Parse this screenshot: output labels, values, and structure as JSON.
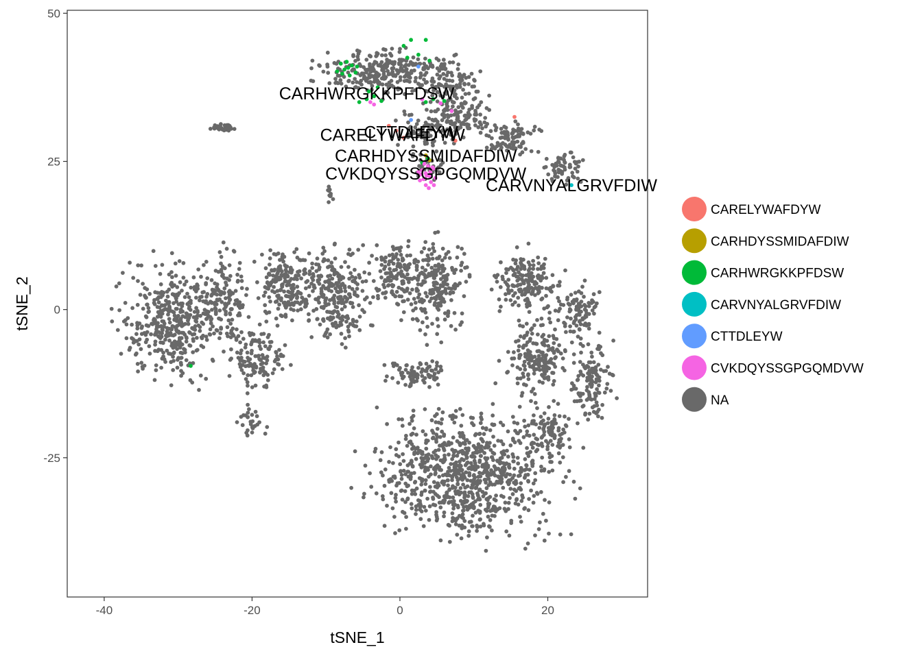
{
  "chart_data": {
    "type": "scatter",
    "xlabel": "tSNE_1",
    "ylabel": "tSNE_2",
    "xlim": [
      -45,
      33.5
    ],
    "ylim": [
      -48.5,
      50.5
    ],
    "x_ticks": [
      -40,
      -20,
      0,
      20
    ],
    "y_ticks": [
      -25,
      0,
      25,
      50
    ],
    "grid": false,
    "legend_position": "right",
    "series": [
      {
        "name": "CARELYWAFDYW",
        "color": "#F8766D",
        "points": [
          [
            -1.5,
            31.0
          ],
          [
            0.5,
            29.0
          ],
          [
            7.5,
            28.5
          ],
          [
            15.5,
            32.5
          ],
          [
            -0.5,
            30.2
          ]
        ]
      },
      {
        "name": "CARHDYSSMIDAFDIW",
        "color": "#B79F00",
        "points": [
          [
            3.5,
            26.0
          ],
          [
            4.0,
            25.2
          ]
        ]
      },
      {
        "name": "CARHWRGKKPFDSW",
        "color": "#00BA38",
        "points": [
          [
            -8.0,
            41.5
          ],
          [
            -7.5,
            40.5
          ],
          [
            -7.0,
            40.8
          ],
          [
            -6.5,
            41.2
          ],
          [
            -7.8,
            39.8
          ],
          [
            -6.8,
            39.5
          ],
          [
            -8.5,
            40.2
          ],
          [
            -6.0,
            40.0
          ],
          [
            -7.2,
            41.8
          ],
          [
            -5.5,
            35.0
          ],
          [
            -4.5,
            35.5
          ],
          [
            -3.5,
            36.0
          ],
          [
            -2.5,
            35.2
          ],
          [
            3.5,
            35.0
          ],
          [
            4.5,
            35.5
          ],
          [
            6.0,
            35.2
          ],
          [
            0.5,
            44.5
          ],
          [
            1.5,
            45.5
          ],
          [
            3.5,
            45.5
          ],
          [
            4.0,
            42.0
          ],
          [
            2.5,
            43.0
          ],
          [
            1.0,
            42.5
          ],
          [
            3.8,
            25.5
          ],
          [
            3.0,
            24.8
          ],
          [
            -28.3,
            -9.5
          ],
          [
            -3.0,
            37.5
          ],
          [
            -4.2,
            36.8
          ],
          [
            -5.8,
            41.0
          ]
        ]
      },
      {
        "name": "CARVNYALGRVFDIW",
        "color": "#00BFC4",
        "points": [
          [
            23.2,
            21.0
          ]
        ]
      },
      {
        "name": "CTTDLEYW",
        "color": "#619CFF",
        "points": [
          [
            2.5,
            41.0
          ],
          [
            1.5,
            32.0
          ]
        ]
      },
      {
        "name": "CVKDQYSSGPGQMDVW",
        "color": "#F564E3",
        "points": [
          [
            3.0,
            23.5
          ],
          [
            3.5,
            23.0
          ],
          [
            4.0,
            22.5
          ],
          [
            3.2,
            22.0
          ],
          [
            4.5,
            23.8
          ],
          [
            3.8,
            24.2
          ],
          [
            4.2,
            21.5
          ],
          [
            2.8,
            22.8
          ],
          [
            3.5,
            21.0
          ],
          [
            4.8,
            22.2
          ],
          [
            2.5,
            23.2
          ],
          [
            3.9,
            20.5
          ],
          [
            4.6,
            21.0
          ],
          [
            3.3,
            24.6
          ],
          [
            4.4,
            24.0
          ],
          [
            2.7,
            21.8
          ],
          [
            4.1,
            23.2
          ],
          [
            3.6,
            22.6
          ],
          [
            -4.0,
            35.0
          ],
          [
            -3.5,
            34.6
          ],
          [
            3.0,
            35.5
          ],
          [
            5.5,
            34.8
          ],
          [
            7.0,
            33.5
          ]
        ]
      },
      {
        "name": "NA",
        "color": "#696969",
        "generated": "dense background cells, drawn by script",
        "points": []
      }
    ],
    "annotations": [
      {
        "text": "CARHWRGKKPFDSW",
        "x": -4.5,
        "y": 36.5
      },
      {
        "text": "CARELYWAFDYW",
        "x": -1.0,
        "y": 29.5
      },
      {
        "text": "CTTDLEYW",
        "x": 1.5,
        "y": 30.0
      },
      {
        "text": "CARHDYSSMIDAFDIW",
        "x": 3.5,
        "y": 26.0
      },
      {
        "text": "CVKDQYSSGPGQMDVW",
        "x": 3.5,
        "y": 23.0
      },
      {
        "text": "CARVNYALGRVFDIW",
        "x": 23.2,
        "y": 21.0
      }
    ],
    "na_clusters": [
      {
        "cx": -31,
        "cy": -2,
        "rx": 7,
        "ry": 10,
        "n": 430
      },
      {
        "cx": -24,
        "cy": 2,
        "rx": 3.5,
        "ry": 8,
        "n": 140
      },
      {
        "cx": -19,
        "cy": -8,
        "rx": 4,
        "ry": 6,
        "n": 130
      },
      {
        "cx": -20,
        "cy": -19,
        "rx": 2,
        "ry": 3,
        "n": 28
      },
      {
        "cx": -16,
        "cy": 4,
        "rx": 4,
        "ry": 6,
        "n": 170
      },
      {
        "cx": -9,
        "cy": 3,
        "rx": 5,
        "ry": 8,
        "n": 280
      },
      {
        "cx": 4,
        "cy": 4,
        "rx": 5,
        "ry": 8,
        "n": 250
      },
      {
        "cx": -1,
        "cy": 6,
        "rx": 3,
        "ry": 5,
        "n": 110
      },
      {
        "cx": 2,
        "cy": -11,
        "rx": 4.5,
        "ry": 2.2,
        "n": 85
      },
      {
        "cx": 17,
        "cy": 5,
        "rx": 5,
        "ry": 5,
        "n": 170
      },
      {
        "cx": 19,
        "cy": -8,
        "rx": 5,
        "ry": 7,
        "n": 200
      },
      {
        "cx": 26,
        "cy": -12,
        "rx": 3,
        "ry": 7,
        "n": 130
      },
      {
        "cx": 24,
        "cy": 0,
        "rx": 3,
        "ry": 5,
        "n": 90
      },
      {
        "cx": 9,
        "cy": -28,
        "rx": 13,
        "ry": 11,
        "n": 900
      },
      {
        "cx": 20,
        "cy": -21,
        "rx": 3.5,
        "ry": 4,
        "n": 90
      },
      {
        "cx": -2,
        "cy": 40,
        "rx": 10,
        "ry": 4,
        "n": 300
      },
      {
        "cx": 7,
        "cy": 38,
        "rx": 4,
        "ry": 4,
        "n": 90
      },
      {
        "cx": 8,
        "cy": 32,
        "rx": 5,
        "ry": 4,
        "n": 140
      },
      {
        "cx": 15,
        "cy": 29,
        "rx": 4,
        "ry": 3,
        "n": 90
      },
      {
        "cx": 22,
        "cy": 24,
        "rx": 3,
        "ry": 3,
        "n": 60
      },
      {
        "cx": 3,
        "cy": 30,
        "rx": 3,
        "ry": 3,
        "n": 60
      },
      {
        "cx": 4,
        "cy": 24,
        "rx": 2,
        "ry": 2.5,
        "n": 40
      },
      {
        "cx": -24,
        "cy": 30.8,
        "rx": 2,
        "ry": 0.6,
        "n": 40
      },
      {
        "cx": -9.5,
        "cy": 19.5,
        "rx": 0.5,
        "ry": 2,
        "n": 12
      }
    ]
  }
}
